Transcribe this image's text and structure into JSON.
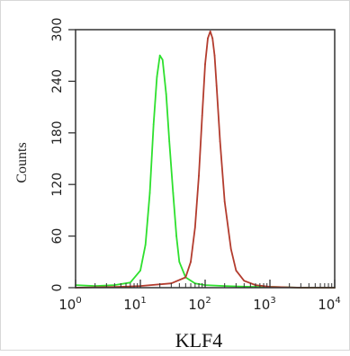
{
  "chart_data": {
    "type": "line",
    "xlabel": "KLF4",
    "ylabel": "Counts",
    "xscale": "log",
    "xlim": [
      1,
      10000
    ],
    "ylim": [
      0,
      300
    ],
    "x_ticks": [
      {
        "value": 1,
        "mantissa": "10",
        "exp": "0"
      },
      {
        "value": 10,
        "mantissa": "10",
        "exp": "1"
      },
      {
        "value": 100,
        "mantissa": "10",
        "exp": "2"
      },
      {
        "value": 1000,
        "mantissa": "10",
        "exp": "3"
      },
      {
        "value": 10000,
        "mantissa": "10",
        "exp": "4"
      }
    ],
    "y_ticks": [
      "0",
      "60",
      "120",
      "180",
      "240",
      "300"
    ],
    "y_tick_values": [
      0,
      60,
      120,
      180,
      240,
      300
    ],
    "series": [
      {
        "color": "#2ee02e",
        "x": [
          1,
          2,
          4,
          7,
          10,
          12,
          14,
          16,
          18,
          20,
          22,
          25,
          28,
          32,
          36,
          40,
          50,
          70,
          100,
          200,
          500,
          1000,
          3000,
          10000
        ],
        "y": [
          3,
          2,
          3,
          6,
          20,
          50,
          110,
          190,
          245,
          270,
          265,
          225,
          170,
          110,
          60,
          30,
          12,
          5,
          3,
          2,
          1,
          1,
          0,
          0
        ]
      },
      {
        "color": "#b33c2e",
        "x": [
          1,
          5,
          10,
          30,
          50,
          60,
          70,
          80,
          90,
          100,
          110,
          120,
          130,
          140,
          150,
          170,
          200,
          250,
          300,
          400,
          600,
          1000,
          3000,
          10000
        ],
        "y": [
          0,
          1,
          2,
          5,
          12,
          30,
          70,
          130,
          200,
          260,
          290,
          298,
          290,
          270,
          235,
          170,
          100,
          45,
          20,
          8,
          3,
          1,
          0,
          0
        ]
      }
    ]
  }
}
